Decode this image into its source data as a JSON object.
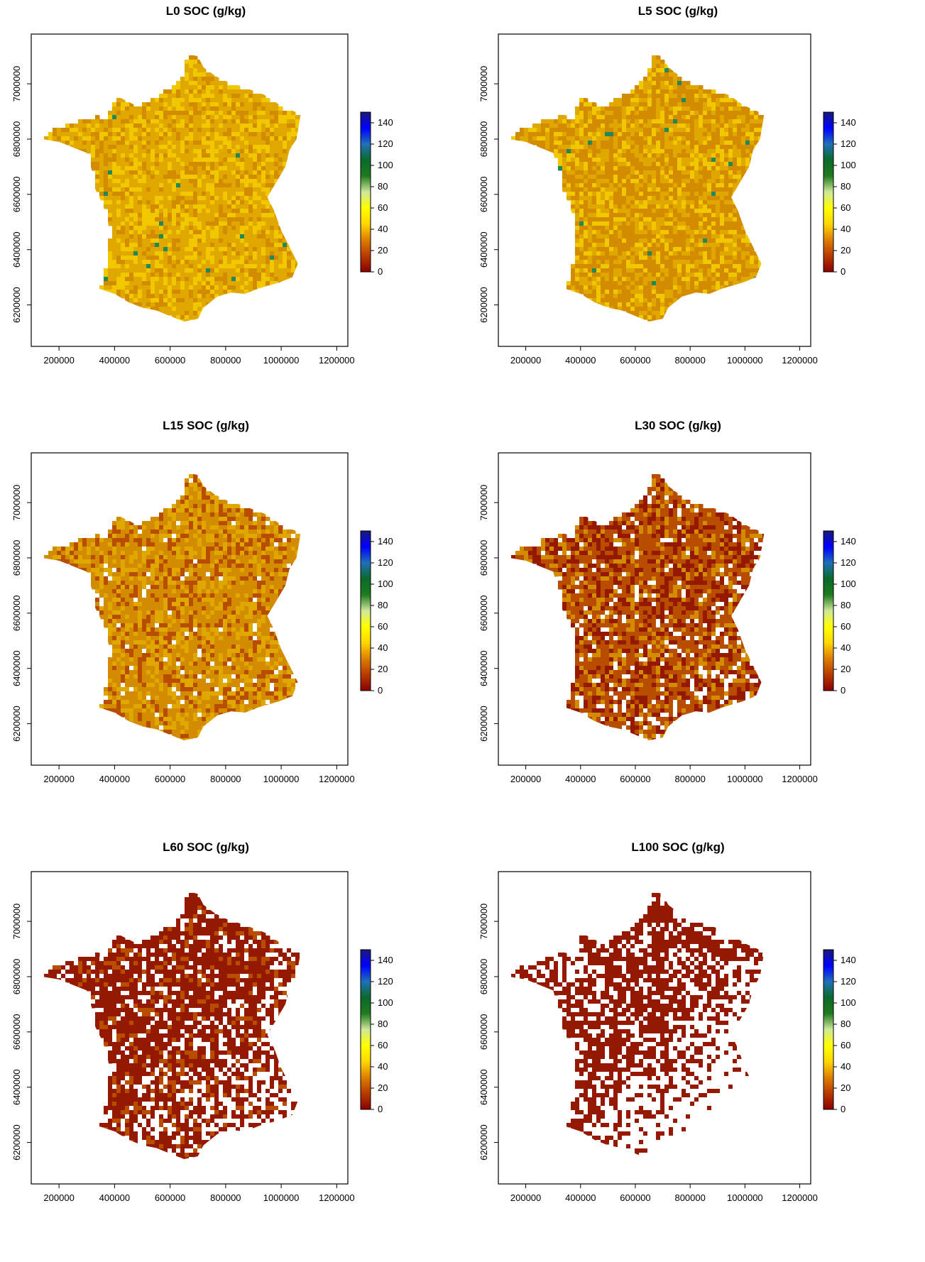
{
  "colors": {
    "scale": [
      "#8b0000",
      "#b83a00",
      "#dd7f00",
      "#ffd700",
      "#ffff00",
      "#cfe89a",
      "#1f7a1f",
      "#0b6a2a",
      "#1f70b8",
      "#0000ff",
      "#1a1a7a"
    ],
    "soc_levels": {
      "very_low": "#941900",
      "low": "#b84d00",
      "mid_low": "#d38b00",
      "mid": "#e0a700",
      "mid_high": "#f1c800",
      "high": "#f7df00"
    },
    "blue_green_spots": "#1f8a55"
  },
  "chart_data": [
    {
      "type": "heatmap",
      "title": "L0 SOC (g/kg)",
      "x_ticks": [
        "200000",
        "400000",
        "600000",
        "800000",
        "1000000",
        "1200000"
      ],
      "y_ticks": [
        "6200000",
        "6400000",
        "6600000",
        "6800000",
        "7000000"
      ],
      "colorbar_ticks": [
        "0",
        "20",
        "40",
        "60",
        "80",
        "100",
        "120",
        "140"
      ],
      "colorbar_range": [
        0,
        150
      ],
      "dominant_colors": [
        "#e0a700",
        "#f1c800",
        "#d38b00"
      ]
    },
    {
      "type": "heatmap",
      "title": "L5 SOC (g/kg)",
      "x_ticks": [
        "200000",
        "400000",
        "600000",
        "800000",
        "1000000",
        "1200000"
      ],
      "y_ticks": [
        "6200000",
        "6400000",
        "6600000",
        "6800000",
        "7000000"
      ],
      "colorbar_ticks": [
        "0",
        "20",
        "40",
        "60",
        "80",
        "100",
        "120",
        "140"
      ],
      "colorbar_range": [
        0,
        150
      ],
      "dominant_colors": [
        "#d38b00",
        "#e0a700",
        "#f1c800"
      ]
    },
    {
      "type": "heatmap",
      "title": "L15 SOC (g/kg)",
      "x_ticks": [
        "200000",
        "400000",
        "600000",
        "800000",
        "1000000",
        "1200000"
      ],
      "y_ticks": [
        "6200000",
        "6400000",
        "6600000",
        "6800000",
        "7000000"
      ],
      "colorbar_ticks": [
        "0",
        "20",
        "40",
        "60",
        "80",
        "100",
        "120",
        "140"
      ],
      "colorbar_range": [
        0,
        150
      ],
      "dominant_colors": [
        "#d38b00",
        "#e0a700",
        "#b84d00"
      ]
    },
    {
      "type": "heatmap",
      "title": "L30 SOC (g/kg)",
      "x_ticks": [
        "200000",
        "400000",
        "600000",
        "800000",
        "1000000",
        "1200000"
      ],
      "y_ticks": [
        "6200000",
        "6400000",
        "6600000",
        "6800000",
        "7000000"
      ],
      "colorbar_ticks": [
        "0",
        "20",
        "40",
        "60",
        "80",
        "100",
        "120",
        "140"
      ],
      "colorbar_range": [
        0,
        150
      ],
      "dominant_colors": [
        "#b84d00",
        "#941900",
        "#d38b00"
      ]
    },
    {
      "type": "heatmap",
      "title": "L60 SOC (g/kg)",
      "x_ticks": [
        "200000",
        "400000",
        "600000",
        "800000",
        "1000000",
        "1200000"
      ],
      "y_ticks": [
        "6200000",
        "6400000",
        "6600000",
        "6800000",
        "7000000"
      ],
      "colorbar_ticks": [
        "0",
        "20",
        "40",
        "60",
        "80",
        "100",
        "120",
        "140"
      ],
      "colorbar_range": [
        0,
        150
      ],
      "dominant_colors": [
        "#941900",
        "#941900",
        "#b84d00"
      ]
    },
    {
      "type": "heatmap",
      "title": "L100 SOC (g/kg)",
      "x_ticks": [
        "200000",
        "400000",
        "600000",
        "800000",
        "1000000",
        "1200000"
      ],
      "y_ticks": [
        "6200000",
        "6400000",
        "6600000",
        "6800000",
        "7000000"
      ],
      "colorbar_ticks": [
        "0",
        "20",
        "40",
        "60",
        "80",
        "100",
        "120",
        "140"
      ],
      "colorbar_range": [
        0,
        150
      ],
      "dominant_colors": [
        "#941900",
        "#941900",
        "#941900"
      ]
    }
  ]
}
